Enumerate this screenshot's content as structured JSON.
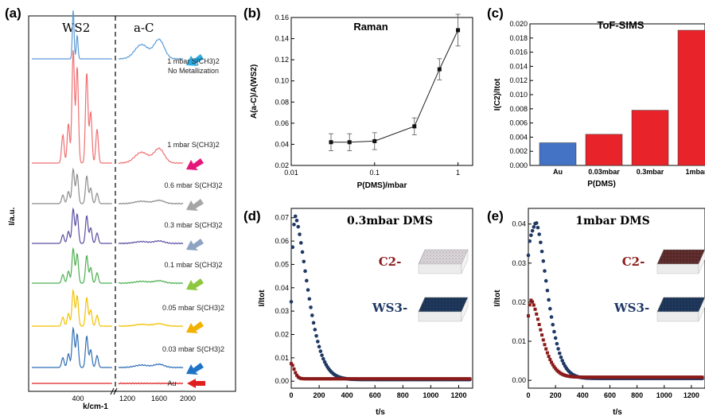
{
  "panel_labels": [
    "(a)",
    "(b)",
    "(c)",
    "(d)",
    "(e)"
  ],
  "chart_data": [
    {
      "id": "a",
      "type": "line",
      "title": "",
      "region_labels": [
        "WS2",
        "a-C"
      ],
      "xlabel": "k/cm-1",
      "ylabel": "I/a.u.",
      "x_ticks_left": [
        "400"
      ],
      "x_ticks_right": [
        "1200",
        "1600",
        "2000"
      ],
      "series": [
        {
          "name": "1 mbar S(CH3)2 No Metallization",
          "label_lines": [
            "1 mbar S(CH3)2",
            "No Metallization"
          ],
          "color": "#5b9bd5",
          "arrow_color": "#29aae1"
        },
        {
          "name": "1 mbar S(CH3)2",
          "label_lines": [
            "1 mbar S(CH3)2"
          ],
          "color": "#f06f72",
          "arrow_color": "#e6177a"
        },
        {
          "name": "0.6 mbar S(CH3)2",
          "label_lines": [
            "0.6 mbar S(CH3)2"
          ],
          "color": "#8c8c8c",
          "arrow_color": "#a6a6a6"
        },
        {
          "name": "0.3 mbar S(CH3)2",
          "label_lines": [
            "0.3 mbar S(CH3)2"
          ],
          "color": "#5a4fa3",
          "arrow_color": "#8ea3c2"
        },
        {
          "name": "0.1 mbar S(CH3)2",
          "label_lines": [
            "0.1 mbar S(CH3)2"
          ],
          "color": "#4caf50",
          "arrow_color": "#8dc63f"
        },
        {
          "name": "0.05 mbar S(CH3)2",
          "label_lines": [
            "0.05 mbar S(CH3)2"
          ],
          "color": "#f2c100",
          "arrow_color": "#f2b100"
        },
        {
          "name": "0.03 mbar S(CH3)2",
          "label_lines": [
            "0.03 mbar S(CH3)2"
          ],
          "color": "#2f6eb5",
          "arrow_color": "#1f73c6"
        },
        {
          "name": "Au",
          "label_lines": [
            "Au"
          ],
          "color": "#e02020",
          "arrow_color": "#e02020"
        }
      ]
    },
    {
      "id": "b",
      "type": "scatter",
      "title": "Raman",
      "xlabel": "P(DMS)/mbar",
      "ylabel": "A(a-C)/A(WS2)",
      "xscale": "log",
      "xlim": [
        0.01,
        1.5
      ],
      "ylim": [
        0.02,
        0.16
      ],
      "x_ticks": [
        0.01,
        0.1,
        1
      ],
      "x_tick_labels": [
        "0.01",
        "0.1",
        "1"
      ],
      "y_ticks": [
        0.02,
        0.04,
        0.06,
        0.08,
        0.1,
        0.12,
        0.14,
        0.16
      ],
      "y_tick_labels": [
        "0.02",
        "0.04",
        "0.06",
        "0.08",
        "0.10",
        "0.12",
        "0.14",
        "0.16"
      ],
      "x": [
        0.03,
        0.05,
        0.1,
        0.3,
        0.6,
        1.0
      ],
      "y": [
        0.042,
        0.042,
        0.043,
        0.057,
        0.111,
        0.148
      ],
      "yerr": [
        0.008,
        0.008,
        0.008,
        0.008,
        0.01,
        0.015
      ]
    },
    {
      "id": "c",
      "type": "bar",
      "title": "ToF-SIMS",
      "xlabel": "P(DMS)",
      "ylabel": "I(C2)/Itot",
      "ylim": [
        0,
        0.02
      ],
      "y_ticks": [
        0,
        0.002,
        0.004,
        0.006,
        0.008,
        0.01,
        0.012,
        0.014,
        0.016,
        0.018,
        0.02
      ],
      "y_tick_labels": [
        "0.000",
        "0.002",
        "0.004",
        "0.006",
        "0.008",
        "0.010",
        "0.012",
        "0.014",
        "0.016",
        "0.018",
        "0.020"
      ],
      "categories": [
        "Au",
        "0.03mbar",
        "0.3mbar",
        "1mbar"
      ],
      "values": [
        0.0032,
        0.0044,
        0.0078,
        0.0191
      ],
      "colors": [
        "#4472c4",
        "#e8232a",
        "#e8232a",
        "#e8232a"
      ]
    },
    {
      "id": "d",
      "type": "scatter",
      "title": "0.3mbar DMS",
      "xlabel": "t/s",
      "ylabel": "I/Itot",
      "xlim": [
        0,
        1300
      ],
      "ylim": [
        -0.003,
        0.074
      ],
      "x_ticks": [
        0,
        200,
        400,
        600,
        800,
        1000,
        1200
      ],
      "y_ticks": [
        0,
        0.01,
        0.02,
        0.03,
        0.04,
        0.05,
        0.06,
        0.07
      ],
      "y_tick_labels": [
        "0.00",
        "0.01",
        "0.02",
        "0.03",
        "0.04",
        "0.05",
        "0.06",
        "0.07"
      ],
      "series": [
        {
          "name": "WS3-",
          "color": "#1f3864",
          "peak": 0.071,
          "start": 0.034,
          "tpeak": 25,
          "tau": 130,
          "offset": 0.0007
        },
        {
          "name": "C2-",
          "color": "#8b1a1a",
          "peak": 0.0075,
          "start": 0.0075,
          "tpeak": 2,
          "tau": 30,
          "offset": 0.001
        }
      ],
      "inset_labels": [
        "C2-",
        "WS3-"
      ]
    },
    {
      "id": "e",
      "type": "scatter",
      "title": "1mbar DMS",
      "xlabel": "t/s",
      "ylabel": "I/Itot",
      "xlim": [
        0,
        1300
      ],
      "ylim": [
        -0.002,
        0.044
      ],
      "x_ticks": [
        0,
        200,
        400,
        600,
        800,
        1000,
        1200
      ],
      "y_ticks": [
        0,
        0.01,
        0.02,
        0.03,
        0.04
      ],
      "y_tick_labels": [
        "0.00",
        "0.01",
        "0.02",
        "0.03",
        "0.04"
      ],
      "series": [
        {
          "name": "WS3-",
          "color": "#1f3864",
          "peak": 0.0405,
          "start": 0.032,
          "tpeak": 55,
          "tau": 120,
          "offset": 0.0005
        },
        {
          "name": "C2-",
          "color": "#8b1a1a",
          "peak": 0.0205,
          "start": 0.0165,
          "tpeak": 20,
          "tau": 110,
          "offset": 0.0008
        }
      ],
      "inset_labels": [
        "C2-",
        "WS3-"
      ]
    }
  ]
}
